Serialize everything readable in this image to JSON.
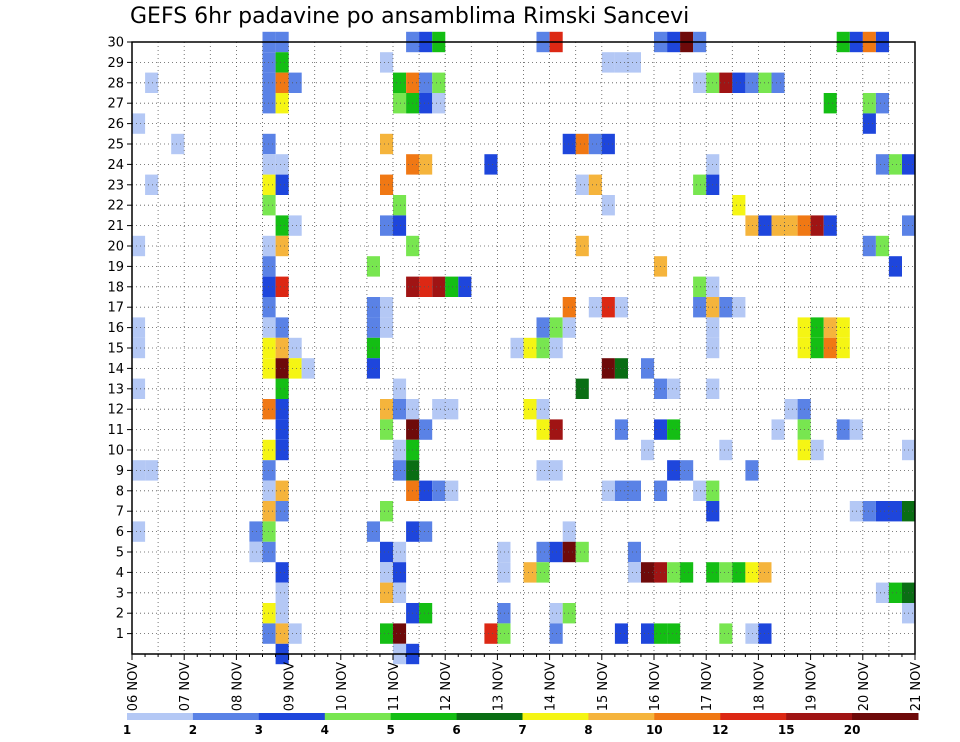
{
  "chart_data": {
    "type": "heatmap",
    "title": "GEFS 6hr padavine po ansamblima Rimski Sancevi",
    "xlabel": "",
    "ylabel": "",
    "x_ticks": [
      "06 NOV",
      "07 NOV",
      "08 NOV",
      "09 NOV",
      "10 NOV",
      "11 NOV",
      "12 NOV",
      "13 NOV",
      "14 NOV",
      "15 NOV",
      "16 NOV",
      "17 NOV",
      "18 NOV",
      "19 NOV",
      "20 NOV",
      "21 NOV"
    ],
    "y_ticks": [
      "1",
      "2",
      "3",
      "4",
      "5",
      "6",
      "7",
      "8",
      "9",
      "10",
      "11",
      "12",
      "13",
      "14",
      "15",
      "16",
      "17",
      "18",
      "19",
      "20",
      "21",
      "22",
      "23",
      "24",
      "25",
      "26",
      "27",
      "28",
      "29",
      "30"
    ],
    "legend": {
      "labels": [
        "1",
        "2",
        "3",
        "4",
        "5",
        "6",
        "7",
        "8",
        "10",
        "12",
        "15",
        "20"
      ],
      "colors": [
        "#b4c8f5",
        "#5a82e6",
        "#1e46dc",
        "#78e650",
        "#14be14",
        "#0a6e14",
        "#f5f514",
        "#f5b43c",
        "#f07814",
        "#dc2814",
        "#a01414",
        "#6e0a0a"
      ]
    },
    "cells": [
      [
        30,
        8.5,
        2
      ],
      [
        30,
        8.75,
        2
      ],
      [
        30,
        11.25,
        2
      ],
      [
        30,
        11.5,
        3
      ],
      [
        30,
        11.75,
        5
      ],
      [
        30,
        13.75,
        2
      ],
      [
        30,
        14.0,
        12
      ],
      [
        30,
        16.0,
        2
      ],
      [
        30,
        16.25,
        3
      ],
      [
        30,
        16.5,
        20
      ],
      [
        30,
        16.75,
        2
      ],
      [
        30,
        19.5,
        5
      ],
      [
        30,
        19.75,
        3
      ],
      [
        30,
        20.0,
        10
      ],
      [
        30,
        20.25,
        3
      ],
      [
        29,
        8.5,
        2
      ],
      [
        29,
        8.75,
        5
      ],
      [
        29,
        10.75,
        1
      ],
      [
        29,
        15.0,
        1
      ],
      [
        29,
        15.25,
        1
      ],
      [
        29,
        15.5,
        1
      ],
      [
        28,
        6.25,
        1
      ],
      [
        28,
        8.5,
        2
      ],
      [
        28,
        8.75,
        10
      ],
      [
        28,
        9.0,
        2
      ],
      [
        28,
        11.0,
        5
      ],
      [
        28,
        11.25,
        10
      ],
      [
        28,
        11.5,
        2
      ],
      [
        28,
        11.75,
        4
      ],
      [
        28,
        16.75,
        1
      ],
      [
        28,
        17.0,
        4
      ],
      [
        28,
        17.25,
        15
      ],
      [
        28,
        17.5,
        3
      ],
      [
        28,
        17.75,
        2
      ],
      [
        28,
        18.0,
        4
      ],
      [
        28,
        18.25,
        2
      ],
      [
        27,
        8.5,
        2
      ],
      [
        27,
        8.75,
        7
      ],
      [
        27,
        11.0,
        4
      ],
      [
        27,
        11.25,
        5
      ],
      [
        27,
        11.5,
        3
      ],
      [
        27,
        11.75,
        1
      ],
      [
        27,
        19.25,
        5
      ],
      [
        27,
        20.0,
        4
      ],
      [
        27,
        20.25,
        2
      ],
      [
        26,
        6.0,
        1
      ],
      [
        26,
        20.0,
        3
      ],
      [
        25,
        6.75,
        1
      ],
      [
        25,
        8.5,
        2
      ],
      [
        25,
        10.75,
        8
      ],
      [
        25,
        14.25,
        3
      ],
      [
        25,
        14.5,
        10
      ],
      [
        25,
        14.75,
        2
      ],
      [
        25,
        15.0,
        3
      ],
      [
        24,
        8.5,
        1
      ],
      [
        24,
        8.75,
        1
      ],
      [
        24,
        11.25,
        10
      ],
      [
        24,
        11.5,
        8
      ],
      [
        24,
        12.75,
        3
      ],
      [
        24,
        17.0,
        1
      ],
      [
        24,
        20.25,
        2
      ],
      [
        24,
        20.5,
        4
      ],
      [
        24,
        20.75,
        3
      ],
      [
        23,
        6.25,
        1
      ],
      [
        23,
        8.5,
        7
      ],
      [
        23,
        8.75,
        3
      ],
      [
        23,
        10.75,
        10
      ],
      [
        23,
        14.5,
        1
      ],
      [
        23,
        14.75,
        8
      ],
      [
        23,
        16.75,
        4
      ],
      [
        23,
        17.0,
        3
      ],
      [
        22,
        8.5,
        4
      ],
      [
        22,
        11.0,
        4
      ],
      [
        22,
        15.0,
        1
      ],
      [
        22,
        17.5,
        7
      ],
      [
        21,
        8.75,
        5
      ],
      [
        21,
        9.0,
        1
      ],
      [
        21,
        10.75,
        2
      ],
      [
        21,
        11.0,
        3
      ],
      [
        21,
        17.75,
        8
      ],
      [
        21,
        18.0,
        3
      ],
      [
        21,
        18.25,
        8
      ],
      [
        21,
        18.5,
        8
      ],
      [
        21,
        18.75,
        10
      ],
      [
        21,
        19.0,
        15
      ],
      [
        21,
        19.25,
        3
      ],
      [
        21,
        20.75,
        2
      ],
      [
        20,
        6.0,
        1
      ],
      [
        20,
        8.5,
        1
      ],
      [
        20,
        8.75,
        8
      ],
      [
        20,
        11.25,
        4
      ],
      [
        20,
        14.5,
        8
      ],
      [
        20,
        20.0,
        2
      ],
      [
        20,
        20.25,
        4
      ],
      [
        19,
        8.5,
        2
      ],
      [
        19,
        10.5,
        4
      ],
      [
        19,
        16.0,
        8
      ],
      [
        19,
        20.5,
        3
      ],
      [
        18,
        8.5,
        3
      ],
      [
        18,
        8.75,
        12
      ],
      [
        18,
        11.25,
        15
      ],
      [
        18,
        11.5,
        12
      ],
      [
        18,
        11.75,
        15
      ],
      [
        18,
        12.0,
        5
      ],
      [
        18,
        12.25,
        3
      ],
      [
        18,
        16.75,
        4
      ],
      [
        18,
        17.0,
        1
      ],
      [
        17,
        8.5,
        2
      ],
      [
        17,
        10.5,
        2
      ],
      [
        17,
        10.75,
        1
      ],
      [
        17,
        14.25,
        10
      ],
      [
        17,
        14.75,
        1
      ],
      [
        17,
        15.0,
        12
      ],
      [
        17,
        15.25,
        1
      ],
      [
        17,
        16.75,
        2
      ],
      [
        17,
        17.0,
        8
      ],
      [
        17,
        17.25,
        2
      ],
      [
        17,
        17.5,
        1
      ],
      [
        16,
        6.0,
        1
      ],
      [
        16,
        8.5,
        1
      ],
      [
        16,
        8.75,
        2
      ],
      [
        16,
        10.5,
        2
      ],
      [
        16,
        10.75,
        1
      ],
      [
        16,
        13.75,
        2
      ],
      [
        16,
        14.0,
        4
      ],
      [
        16,
        14.25,
        1
      ],
      [
        16,
        17.0,
        1
      ],
      [
        16,
        18.75,
        7
      ],
      [
        16,
        19.0,
        5
      ],
      [
        16,
        19.25,
        8
      ],
      [
        16,
        19.5,
        7
      ],
      [
        15,
        6.0,
        1
      ],
      [
        15,
        8.5,
        7
      ],
      [
        15,
        8.75,
        8
      ],
      [
        15,
        9.0,
        1
      ],
      [
        15,
        10.5,
        5
      ],
      [
        15,
        13.25,
        1
      ],
      [
        15,
        13.5,
        7
      ],
      [
        15,
        13.75,
        4
      ],
      [
        15,
        14.0,
        1
      ],
      [
        15,
        17.0,
        1
      ],
      [
        15,
        18.75,
        7
      ],
      [
        15,
        19.0,
        5
      ],
      [
        15,
        19.25,
        10
      ],
      [
        15,
        19.5,
        7
      ],
      [
        14,
        8.5,
        7
      ],
      [
        14,
        8.75,
        20
      ],
      [
        14,
        9.0,
        7
      ],
      [
        14,
        9.25,
        1
      ],
      [
        14,
        10.5,
        3
      ],
      [
        14,
        15.0,
        20
      ],
      [
        14,
        15.25,
        6
      ],
      [
        14,
        15.75,
        2
      ],
      [
        13,
        6.0,
        1
      ],
      [
        13,
        8.75,
        5
      ],
      [
        13,
        11.0,
        1
      ],
      [
        13,
        14.5,
        6
      ],
      [
        13,
        16.0,
        2
      ],
      [
        13,
        16.25,
        1
      ],
      [
        13,
        17.0,
        1
      ],
      [
        12,
        8.5,
        10
      ],
      [
        12,
        8.75,
        3
      ],
      [
        12,
        10.75,
        8
      ],
      [
        12,
        11.0,
        2
      ],
      [
        12,
        11.25,
        1
      ],
      [
        12,
        11.75,
        1
      ],
      [
        12,
        12.0,
        1
      ],
      [
        12,
        13.5,
        7
      ],
      [
        12,
        13.75,
        1
      ],
      [
        12,
        18.5,
        1
      ],
      [
        12,
        18.75,
        2
      ],
      [
        11,
        8.75,
        3
      ],
      [
        11,
        10.75,
        4
      ],
      [
        11,
        11.25,
        20
      ],
      [
        11,
        11.5,
        2
      ],
      [
        11,
        13.75,
        7
      ],
      [
        11,
        14.0,
        15
      ],
      [
        11,
        15.25,
        2
      ],
      [
        11,
        16.0,
        3
      ],
      [
        11,
        16.25,
        5
      ],
      [
        11,
        18.25,
        1
      ],
      [
        11,
        18.75,
        4
      ],
      [
        11,
        19.5,
        2
      ],
      [
        11,
        19.75,
        1
      ],
      [
        10,
        8.5,
        7
      ],
      [
        10,
        8.75,
        3
      ],
      [
        10,
        11.0,
        1
      ],
      [
        10,
        11.25,
        5
      ],
      [
        10,
        15.75,
        1
      ],
      [
        10,
        17.25,
        1
      ],
      [
        10,
        18.75,
        7
      ],
      [
        10,
        19.0,
        1
      ],
      [
        10,
        20.75,
        1
      ],
      [
        9,
        6.0,
        1
      ],
      [
        9,
        6.25,
        1
      ],
      [
        9,
        8.5,
        2
      ],
      [
        9,
        11.0,
        2
      ],
      [
        9,
        11.25,
        6
      ],
      [
        9,
        13.75,
        1
      ],
      [
        9,
        14.0,
        1
      ],
      [
        9,
        16.25,
        3
      ],
      [
        9,
        16.5,
        2
      ],
      [
        9,
        17.75,
        2
      ],
      [
        8,
        8.5,
        1
      ],
      [
        8,
        8.75,
        8
      ],
      [
        8,
        11.25,
        10
      ],
      [
        8,
        11.5,
        3
      ],
      [
        8,
        11.75,
        2
      ],
      [
        8,
        12.0,
        1
      ],
      [
        8,
        15.0,
        1
      ],
      [
        8,
        15.25,
        2
      ],
      [
        8,
        15.5,
        2
      ],
      [
        8,
        16.0,
        2
      ],
      [
        8,
        16.75,
        1
      ],
      [
        8,
        17.0,
        4
      ],
      [
        7,
        8.5,
        8
      ],
      [
        7,
        8.75,
        2
      ],
      [
        7,
        10.75,
        4
      ],
      [
        7,
        17.0,
        3
      ],
      [
        7,
        19.75,
        1
      ],
      [
        7,
        20.0,
        2
      ],
      [
        7,
        20.25,
        3
      ],
      [
        7,
        20.5,
        3
      ],
      [
        7,
        20.75,
        6
      ],
      [
        6,
        6.0,
        1
      ],
      [
        6,
        8.25,
        2
      ],
      [
        6,
        8.5,
        4
      ],
      [
        6,
        10.5,
        2
      ],
      [
        6,
        11.25,
        3
      ],
      [
        6,
        11.5,
        2
      ],
      [
        6,
        14.25,
        1
      ],
      [
        5,
        8.25,
        1
      ],
      [
        5,
        8.5,
        2
      ],
      [
        5,
        10.75,
        3
      ],
      [
        5,
        11.0,
        1
      ],
      [
        5,
        13.0,
        1
      ],
      [
        5,
        13.75,
        2
      ],
      [
        5,
        14.0,
        3
      ],
      [
        5,
        14.25,
        20
      ],
      [
        5,
        14.5,
        4
      ],
      [
        5,
        15.5,
        2
      ],
      [
        4,
        8.75,
        3
      ],
      [
        4,
        10.75,
        1
      ],
      [
        4,
        11.0,
        3
      ],
      [
        4,
        13.0,
        1
      ],
      [
        4,
        13.5,
        8
      ],
      [
        4,
        13.75,
        4
      ],
      [
        4,
        15.5,
        1
      ],
      [
        4,
        15.75,
        20
      ],
      [
        4,
        16.0,
        15
      ],
      [
        4,
        16.25,
        4
      ],
      [
        4,
        16.5,
        5
      ],
      [
        4,
        17.0,
        5
      ],
      [
        4,
        17.25,
        4
      ],
      [
        4,
        17.5,
        5
      ],
      [
        4,
        17.75,
        7
      ],
      [
        4,
        18.0,
        8
      ],
      [
        3,
        8.75,
        1
      ],
      [
        3,
        10.75,
        8
      ],
      [
        3,
        11.0,
        1
      ],
      [
        3,
        20.25,
        1
      ],
      [
        3,
        20.5,
        5
      ],
      [
        3,
        20.75,
        6
      ],
      [
        2,
        8.5,
        7
      ],
      [
        2,
        8.75,
        1
      ],
      [
        2,
        11.25,
        3
      ],
      [
        2,
        11.5,
        5
      ],
      [
        2,
        13.0,
        2
      ],
      [
        2,
        14.0,
        1
      ],
      [
        2,
        14.25,
        4
      ],
      [
        2,
        20.75,
        1
      ],
      [
        1,
        8.5,
        2
      ],
      [
        1,
        8.75,
        8
      ],
      [
        1,
        9.0,
        1
      ],
      [
        1,
        10.75,
        5
      ],
      [
        1,
        11.0,
        20
      ],
      [
        1,
        12.75,
        12
      ],
      [
        1,
        13.0,
        4
      ],
      [
        1,
        14.0,
        2
      ],
      [
        1,
        15.25,
        3
      ],
      [
        1,
        15.75,
        3
      ],
      [
        1,
        16.0,
        5
      ],
      [
        1,
        16.25,
        5
      ],
      [
        1,
        17.25,
        4
      ],
      [
        1,
        17.75,
        1
      ],
      [
        1,
        18.0,
        3
      ],
      [
        0,
        8.75,
        3
      ],
      [
        0,
        11.0,
        1
      ],
      [
        0,
        11.25,
        3
      ]
    ],
    "x_unit_days_start": "06 NOV",
    "x_range_days": [
      6,
      21
    ],
    "y_range": [
      0,
      30
    ],
    "grid": true,
    "legend_position": "bottom"
  }
}
